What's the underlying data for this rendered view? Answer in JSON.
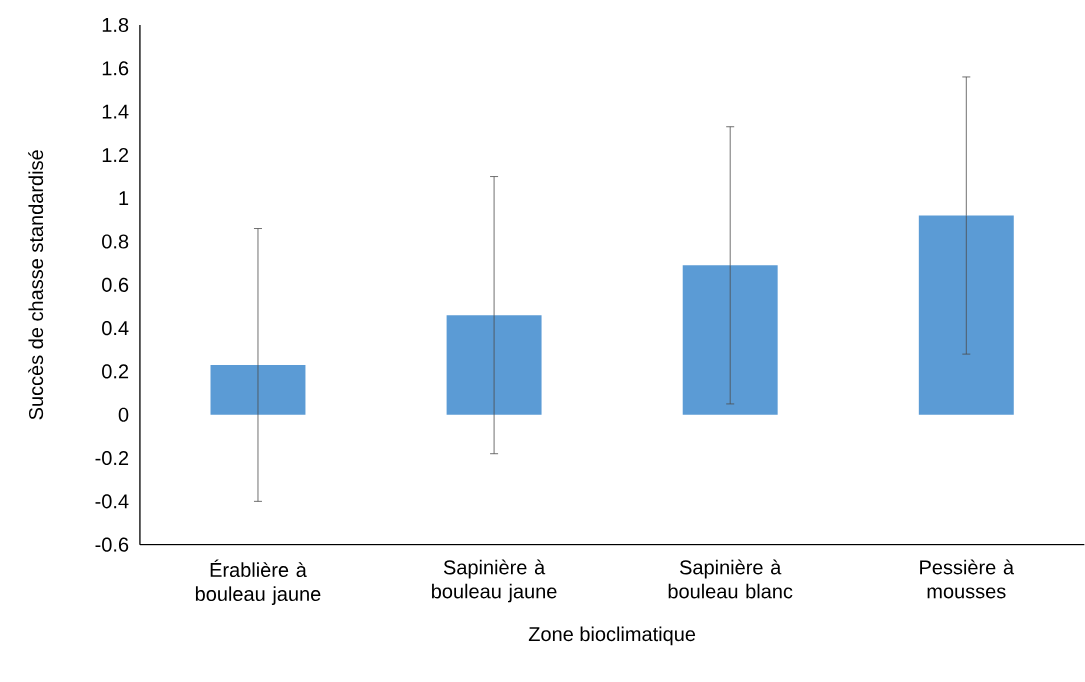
{
  "chart_data": {
    "type": "bar",
    "xlabel": "Zone bioclimatique",
    "ylabel": "Succès de chasse standardisé",
    "categories": [
      "Érablière à bouleau jaune",
      "Sapinière à bouleau jaune",
      "Sapinière à bouleau blanc",
      "Pessière à mousses"
    ],
    "values": [
      0.23,
      0.46,
      0.69,
      0.92
    ],
    "errors": [
      0.63,
      0.64,
      0.64,
      0.64
    ],
    "color": "#5b9bd5",
    "ylim": [
      -0.6,
      1.8
    ],
    "yticks": [
      -0.6,
      -0.4,
      -0.2,
      0,
      0.2,
      0.4,
      0.6,
      0.8,
      1,
      1.2,
      1.4,
      1.6,
      1.8
    ],
    "grid": false
  }
}
